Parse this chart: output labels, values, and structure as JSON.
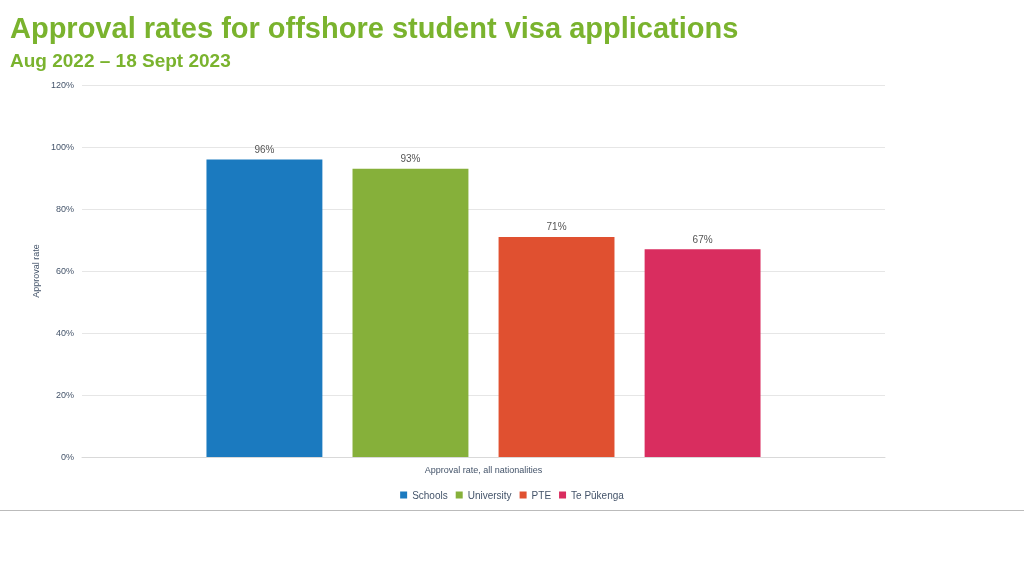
{
  "chart_data": {
    "type": "bar",
    "title": "Approval rates for offshore student visa applications",
    "subtitle": "Aug 2022 – 18 Sept 2023",
    "ylabel": "Approval rate",
    "categories": [
      "Approval rate, all nationalities"
    ],
    "series": [
      {
        "name": "Schools",
        "color": "#1b7abf",
        "values": [
          96
        ],
        "value_labels": [
          "96%"
        ]
      },
      {
        "name": "University",
        "color": "#86b03a",
        "values": [
          93
        ],
        "value_labels": [
          "93%"
        ]
      },
      {
        "name": "PTE",
        "color": "#e05030",
        "values": [
          71
        ],
        "value_labels": [
          "71%"
        ]
      },
      {
        "name": "Te Pūkenga",
        "color": "#d92d5f",
        "values": [
          67
        ],
        "value_labels": [
          "67%"
        ]
      }
    ],
    "ylim": [
      0,
      120
    ],
    "yticks": [
      {
        "value": 0,
        "label": "0%"
      },
      {
        "value": 20,
        "label": "20%"
      },
      {
        "value": 40,
        "label": "40%"
      },
      {
        "value": 60,
        "label": "60%"
      },
      {
        "value": 80,
        "label": "80%"
      },
      {
        "value": 100,
        "label": "100%"
      },
      {
        "value": 120,
        "label": "120%"
      }
    ],
    "grid": true,
    "legend": "bottom"
  }
}
